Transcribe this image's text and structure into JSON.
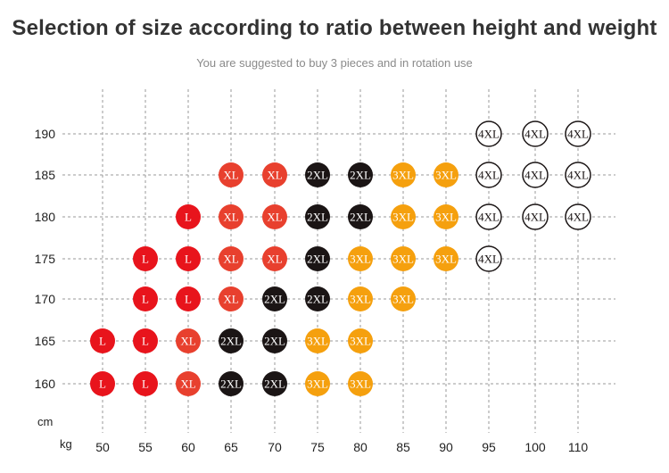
{
  "title": "Selection of size according to ratio between height and weight",
  "subtitle": "You are suggested to buy 3 pieces and in rotation use",
  "colors": {
    "L": "#e8141c",
    "XL": "#e8402e",
    "2XL": "#1b1515",
    "3XL": "#f5a00e",
    "4XL": "#ffffff"
  },
  "chart_data": {
    "type": "scatter",
    "title": "Selection of size according to ratio between height and weight",
    "subtitle": "You are suggested to buy 3 pieces and in rotation use",
    "xlabel": "kg",
    "ylabel": "cm",
    "x_ticks": [
      "50",
      "55",
      "60",
      "65",
      "70",
      "75",
      "80",
      "85",
      "90",
      "95",
      "100",
      "110"
    ],
    "y_ticks": [
      "160",
      "165",
      "170",
      "175",
      "180",
      "185",
      "190"
    ],
    "grid": true,
    "points": [
      {
        "x": "50",
        "y": "160",
        "size": "L"
      },
      {
        "x": "55",
        "y": "160",
        "size": "L"
      },
      {
        "x": "60",
        "y": "160",
        "size": "XL"
      },
      {
        "x": "65",
        "y": "160",
        "size": "2XL"
      },
      {
        "x": "70",
        "y": "160",
        "size": "2XL"
      },
      {
        "x": "75",
        "y": "160",
        "size": "3XL"
      },
      {
        "x": "80",
        "y": "160",
        "size": "3XL"
      },
      {
        "x": "50",
        "y": "165",
        "size": "L"
      },
      {
        "x": "55",
        "y": "165",
        "size": "L"
      },
      {
        "x": "60",
        "y": "165",
        "size": "XL"
      },
      {
        "x": "65",
        "y": "165",
        "size": "2XL"
      },
      {
        "x": "70",
        "y": "165",
        "size": "2XL"
      },
      {
        "x": "75",
        "y": "165",
        "size": "3XL"
      },
      {
        "x": "80",
        "y": "165",
        "size": "3XL"
      },
      {
        "x": "55",
        "y": "170",
        "size": "L"
      },
      {
        "x": "60",
        "y": "170",
        "size": "L"
      },
      {
        "x": "65",
        "y": "170",
        "size": "XL"
      },
      {
        "x": "70",
        "y": "170",
        "size": "2XL"
      },
      {
        "x": "75",
        "y": "170",
        "size": "2XL"
      },
      {
        "x": "80",
        "y": "170",
        "size": "3XL"
      },
      {
        "x": "85",
        "y": "170",
        "size": "3XL"
      },
      {
        "x": "55",
        "y": "175",
        "size": "L"
      },
      {
        "x": "60",
        "y": "175",
        "size": "L"
      },
      {
        "x": "65",
        "y": "175",
        "size": "XL"
      },
      {
        "x": "70",
        "y": "175",
        "size": "XL"
      },
      {
        "x": "75",
        "y": "175",
        "size": "2XL"
      },
      {
        "x": "80",
        "y": "175",
        "size": "3XL"
      },
      {
        "x": "85",
        "y": "175",
        "size": "3XL"
      },
      {
        "x": "90",
        "y": "175",
        "size": "3XL"
      },
      {
        "x": "95",
        "y": "175",
        "size": "4XL"
      },
      {
        "x": "60",
        "y": "180",
        "size": "L"
      },
      {
        "x": "65",
        "y": "180",
        "size": "XL"
      },
      {
        "x": "70",
        "y": "180",
        "size": "XL"
      },
      {
        "x": "75",
        "y": "180",
        "size": "2XL"
      },
      {
        "x": "80",
        "y": "180",
        "size": "2XL"
      },
      {
        "x": "85",
        "y": "180",
        "size": "3XL"
      },
      {
        "x": "90",
        "y": "180",
        "size": "3XL"
      },
      {
        "x": "95",
        "y": "180",
        "size": "4XL"
      },
      {
        "x": "100",
        "y": "180",
        "size": "4XL"
      },
      {
        "x": "110",
        "y": "180",
        "size": "4XL"
      },
      {
        "x": "65",
        "y": "185",
        "size": "XL"
      },
      {
        "x": "70",
        "y": "185",
        "size": "XL"
      },
      {
        "x": "75",
        "y": "185",
        "size": "2XL"
      },
      {
        "x": "80",
        "y": "185",
        "size": "2XL"
      },
      {
        "x": "85",
        "y": "185",
        "size": "3XL"
      },
      {
        "x": "90",
        "y": "185",
        "size": "3XL"
      },
      {
        "x": "95",
        "y": "185",
        "size": "4XL"
      },
      {
        "x": "100",
        "y": "185",
        "size": "4XL"
      },
      {
        "x": "110",
        "y": "185",
        "size": "4XL"
      },
      {
        "x": "95",
        "y": "190",
        "size": "4XL"
      },
      {
        "x": "100",
        "y": "190",
        "size": "4XL"
      },
      {
        "x": "110",
        "y": "190",
        "size": "4XL"
      }
    ]
  }
}
